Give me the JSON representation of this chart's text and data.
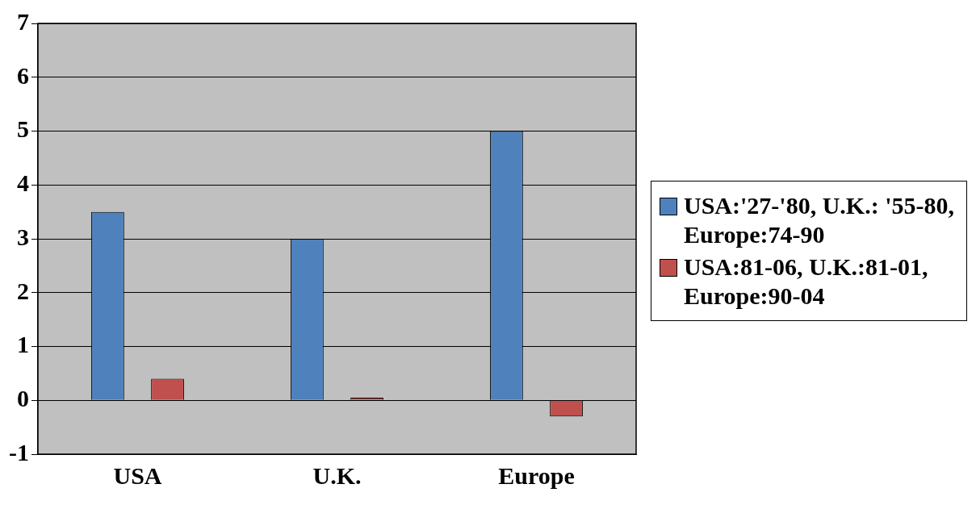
{
  "chart_data": {
    "type": "bar",
    "categories": [
      "USA",
      "U.K.",
      "Europe"
    ],
    "series": [
      {
        "name": "USA:'27-'80, U.K.: '55-80, Europe:74-90",
        "color": "#4f81bd",
        "values": [
          3.5,
          3.0,
          5.0
        ]
      },
      {
        "name": "USA:81-06, U.K.:81-01, Europe:90-04",
        "color": "#c0504d",
        "values": [
          0.4,
          0.05,
          -0.3
        ]
      }
    ],
    "ylim": [
      -1,
      7
    ],
    "yticks": [
      -1,
      0,
      1,
      2,
      3,
      4,
      5,
      6,
      7
    ],
    "grid": "y",
    "legend": "right"
  }
}
